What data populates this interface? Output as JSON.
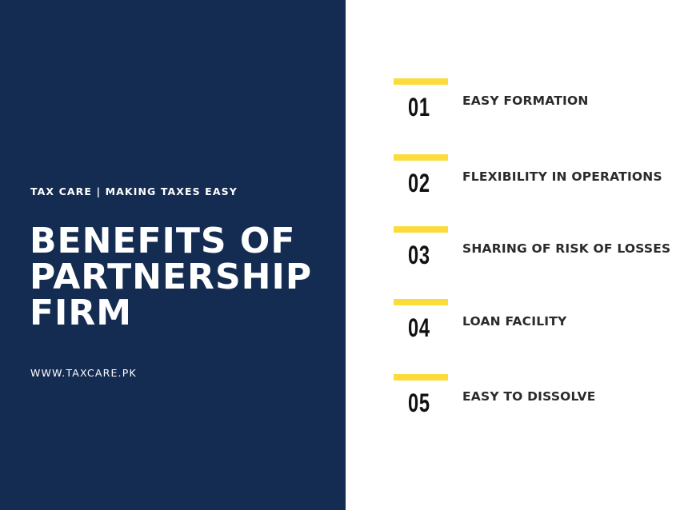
{
  "hero": {
    "tagline": "TAX CARE | MAKING TAXES EASY",
    "title_lines": [
      "BENEFITS OF",
      "PARTNERSHIP",
      "FIRM"
    ],
    "website": "WWW.TAXCARE.PK"
  },
  "benefits": [
    {
      "number": "01",
      "label": "EASY FORMATION"
    },
    {
      "number": "02",
      "label": "FLEXIBILITY IN OPERATIONS"
    },
    {
      "number": "03",
      "label": "SHARING OF RISK OF LOSSES"
    },
    {
      "number": "04",
      "label": "LOAN FACILITY"
    },
    {
      "number": "05",
      "label": "EASY TO DISSOLVE"
    }
  ],
  "colors": {
    "panel": "#142c52",
    "accent": "#fcdc3a",
    "background": "#ffffff"
  }
}
